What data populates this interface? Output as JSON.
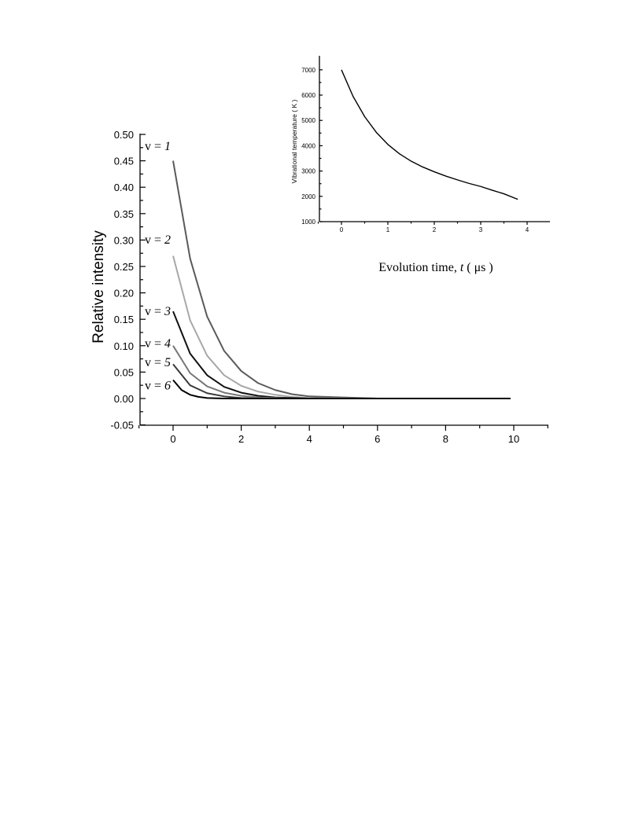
{
  "chart_data": [
    {
      "type": "line",
      "title": "",
      "xlabel": "",
      "ylabel": "Relative intensity",
      "xlim": [
        -1,
        11
      ],
      "ylim": [
        -0.05,
        0.5
      ],
      "x_ticks": [
        "0",
        "2",
        "4",
        "6",
        "8",
        "10"
      ],
      "y_ticks": [
        "0.50",
        "0.45",
        "0.40",
        "0.35",
        "0.30",
        "0.25",
        "0.20",
        "0.15",
        "0.10",
        "0.05",
        "0.00",
        "-0.05"
      ],
      "x_range_shown": [
        0,
        9.9
      ],
      "grid": false,
      "series": [
        {
          "name": "v = 1",
          "color": "#5a5a5a",
          "x": [
            0,
            0.5,
            1,
            1.5,
            2,
            2.5,
            3,
            3.5,
            4,
            6,
            8,
            9.9
          ],
          "y": [
            0.45,
            0.265,
            0.155,
            0.09,
            0.052,
            0.029,
            0.016,
            0.008,
            0.004,
            0.0,
            0.0,
            0.0
          ]
        },
        {
          "name": "v = 2",
          "color": "#a8a8a8",
          "x": [
            0,
            0.5,
            1,
            1.5,
            2,
            2.5,
            3,
            3.5,
            4,
            6,
            8,
            9.9
          ],
          "y": [
            0.27,
            0.148,
            0.081,
            0.044,
            0.024,
            0.013,
            0.007,
            0.003,
            0.001,
            0.0,
            0.0,
            0.0
          ]
        },
        {
          "name": "v = 3",
          "color": "#111111",
          "x": [
            0,
            0.5,
            1,
            1.5,
            2,
            2.5,
            3,
            3.5,
            4,
            6,
            8,
            9.9
          ],
          "y": [
            0.165,
            0.085,
            0.044,
            0.022,
            0.011,
            0.005,
            0.002,
            0.001,
            0.0,
            0.0,
            0.0,
            0.0
          ]
        },
        {
          "name": "v = 4",
          "color": "#777777",
          "x": [
            0,
            0.5,
            1,
            1.5,
            2,
            2.5,
            3,
            3.5,
            4,
            6,
            8,
            9.9
          ],
          "y": [
            0.1,
            0.048,
            0.023,
            0.011,
            0.005,
            0.002,
            0.001,
            0.0,
            0.0,
            0.0,
            0.0,
            0.0
          ]
        },
        {
          "name": "v = 5",
          "color": "#3a3a3a",
          "x": [
            0,
            0.5,
            1,
            1.5,
            2,
            2.5,
            3,
            3.5,
            4,
            6,
            8,
            9.9
          ],
          "y": [
            0.065,
            0.025,
            0.01,
            0.004,
            0.001,
            0.0,
            0.0,
            0.0,
            0.0,
            0.0,
            0.0,
            0.0
          ]
        },
        {
          "name": "v = 6",
          "color": "#000000",
          "x": [
            0,
            0.25,
            0.5,
            0.75,
            1,
            1.5,
            2,
            3,
            4,
            6,
            8,
            9.9
          ],
          "y": [
            0.035,
            0.016,
            0.007,
            0.003,
            0.001,
            0.0,
            0.0,
            0.0,
            0.0,
            0.0,
            0.0,
            0.0
          ]
        }
      ],
      "series_labels": [
        {
          "prefix": "v = ",
          "number": "1",
          "y": 0.479
        },
        {
          "prefix": "v = ",
          "number": "2",
          "y": 0.302
        },
        {
          "prefix": "v = ",
          "number": "3",
          "y": 0.167
        },
        {
          "prefix": "v = ",
          "number": "4",
          "y": 0.106
        },
        {
          "prefix": "v = ",
          "number": "5",
          "y": 0.07
        },
        {
          "prefix": "v = ",
          "number": "6",
          "y": 0.026
        }
      ]
    },
    {
      "type": "line",
      "title": "",
      "xlabel_prefix": "Evolution time, ",
      "xlabel_var": "t",
      "xlabel_unit": " ( μs )",
      "ylabel": "Vibrational temperature ( K )",
      "xlim": [
        -0.5,
        4.5
      ],
      "ylim": [
        1000,
        7500
      ],
      "x_ticks": [
        "0",
        "1",
        "2",
        "3",
        "4"
      ],
      "y_ticks": [
        "7000",
        "6000",
        "5000",
        "4000",
        "3000",
        "2000",
        "1000"
      ],
      "grid": false,
      "series": [
        {
          "name": "",
          "color": "#000000",
          "x": [
            0,
            0.25,
            0.5,
            0.75,
            1,
            1.25,
            1.5,
            1.75,
            2,
            2.25,
            2.5,
            2.75,
            3,
            3.25,
            3.5,
            3.8
          ],
          "y": [
            7000,
            5950,
            5150,
            4530,
            4050,
            3680,
            3390,
            3160,
            2970,
            2800,
            2650,
            2510,
            2390,
            2240,
            2100,
            1880
          ]
        }
      ]
    }
  ]
}
